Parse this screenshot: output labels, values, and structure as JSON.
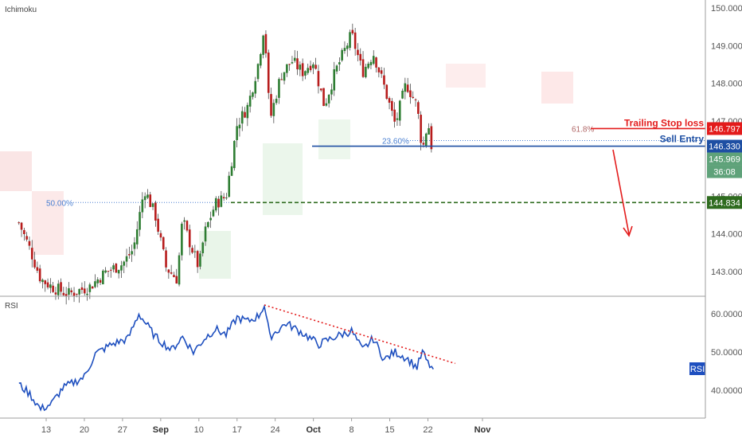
{
  "chart_data": [
    {
      "type": "candlestick",
      "indicator_label": "Ichimoku",
      "y_ticks": [
        "150.000",
        "149.000",
        "148.000",
        "147.000",
        "145.000",
        "144.000",
        "143.000"
      ],
      "ylim": [
        142.7,
        150.2
      ],
      "x_ticks": [
        "13",
        "20",
        "27",
        "Sep",
        "10",
        "17",
        "24",
        "Oct",
        "8",
        "15",
        "22",
        "Nov"
      ],
      "price_path": [
        {
          "x": "Aug 8",
          "y": 144.3
        },
        {
          "x": "Aug 10",
          "y": 143.6
        },
        {
          "x": "Aug 12",
          "y": 142.8
        },
        {
          "x": "Aug 14",
          "y": 142.6
        },
        {
          "x": "Aug 17",
          "y": 142.4
        },
        {
          "x": "Aug 21",
          "y": 142.6
        },
        {
          "x": "Aug 24",
          "y": 143.0
        },
        {
          "x": "Aug 27",
          "y": 143.2
        },
        {
          "x": "Aug 29",
          "y": 143.6
        },
        {
          "x": "Aug 31",
          "y": 145.2
        },
        {
          "x": "Sep 2",
          "y": 144.5
        },
        {
          "x": "Sep 4",
          "y": 143.1
        },
        {
          "x": "Sep 6",
          "y": 142.8
        },
        {
          "x": "Sep 7",
          "y": 144.4
        },
        {
          "x": "Sep 8",
          "y": 143.9
        },
        {
          "x": "Sep 10",
          "y": 143.1
        },
        {
          "x": "Sep 11",
          "y": 144.0
        },
        {
          "x": "Sep 13",
          "y": 144.8
        },
        {
          "x": "Sep 15",
          "y": 145.0
        },
        {
          "x": "Sep 17",
          "y": 146.9
        },
        {
          "x": "Sep 19",
          "y": 147.4
        },
        {
          "x": "Sep 21",
          "y": 148.6
        },
        {
          "x": "Sep 22",
          "y": 149.6
        },
        {
          "x": "Sep 23",
          "y": 147.0
        },
        {
          "x": "Sep 25",
          "y": 148.2
        },
        {
          "x": "Sep 27",
          "y": 148.6
        },
        {
          "x": "Sep 29",
          "y": 148.3
        },
        {
          "x": "Oct 1",
          "y": 148.6
        },
        {
          "x": "Oct 3",
          "y": 147.4
        },
        {
          "x": "Oct 5",
          "y": 148.3
        },
        {
          "x": "Oct 8",
          "y": 149.3
        },
        {
          "x": "Oct 10",
          "y": 148.3
        },
        {
          "x": "Oct 12",
          "y": 148.8
        },
        {
          "x": "Oct 14",
          "y": 147.9
        },
        {
          "x": "Oct 16",
          "y": 146.9
        },
        {
          "x": "Oct 18",
          "y": 148.0
        },
        {
          "x": "Oct 20",
          "y": 147.4
        },
        {
          "x": "Oct 21",
          "y": 146.2
        },
        {
          "x": "Oct 22",
          "y": 147.0
        },
        {
          "x": "Oct 23",
          "y": 145.97
        }
      ],
      "fib_levels": [
        {
          "label": "50.00%",
          "value": 144.834
        },
        {
          "label": "23.60%",
          "value": 146.33
        },
        {
          "label": "61.8%",
          "value": 146.797
        }
      ],
      "annotations": [
        {
          "label": "Trailing Stop loss",
          "value": "146.797",
          "color": "#e31b1b"
        },
        {
          "label": "Sell Entry",
          "value": "146.330",
          "color": "#1e4fa3"
        },
        {
          "label": "",
          "value": "144.834",
          "color": "#2e6b1e"
        }
      ],
      "last_price": "145.969",
      "countdown": "36:08",
      "colors": {
        "up": "#2e7d32",
        "down": "#b71c1c",
        "stop": "#e31b1b",
        "entry": "#1e4fa3",
        "target": "#2e6b1e",
        "last": "#5fa27a"
      }
    },
    {
      "type": "line",
      "indicator_label": "RSI",
      "legend_badge": "RSI",
      "y_ticks": [
        "60.0000",
        "50.0000",
        "40.0000"
      ],
      "ylim": [
        33,
        64
      ],
      "series": [
        {
          "color": "#1e4fbf",
          "points": [
            {
              "x": "Aug 8",
              "y": 41.5
            },
            {
              "x": "Aug 10",
              "y": 39.0
            },
            {
              "x": "Aug 12",
              "y": 35.0
            },
            {
              "x": "Aug 14",
              "y": 36.5
            },
            {
              "x": "Aug 16",
              "y": 40.5
            },
            {
              "x": "Aug 18",
              "y": 42.0
            },
            {
              "x": "Aug 20",
              "y": 43.5
            },
            {
              "x": "Aug 22",
              "y": 49.5
            },
            {
              "x": "Aug 25",
              "y": 52.0
            },
            {
              "x": "Aug 28",
              "y": 53.5
            },
            {
              "x": "Aug 30",
              "y": 60.0
            },
            {
              "x": "Sep 2",
              "y": 54.0
            },
            {
              "x": "Sep 5",
              "y": 50.5
            },
            {
              "x": "Sep 7",
              "y": 54.0
            },
            {
              "x": "Sep 9",
              "y": 50.0
            },
            {
              "x": "Sep 11",
              "y": 53.5
            },
            {
              "x": "Sep 13",
              "y": 56.0
            },
            {
              "x": "Sep 15",
              "y": 54.5
            },
            {
              "x": "Sep 17",
              "y": 59.0
            },
            {
              "x": "Sep 19",
              "y": 58.0
            },
            {
              "x": "Sep 21",
              "y": 59.5
            },
            {
              "x": "Sep 22",
              "y": 62.3
            },
            {
              "x": "Sep 23",
              "y": 54.0
            },
            {
              "x": "Sep 26",
              "y": 57.5
            },
            {
              "x": "Sep 29",
              "y": 55.0
            },
            {
              "x": "Oct 2",
              "y": 52.0
            },
            {
              "x": "Oct 5",
              "y": 54.0
            },
            {
              "x": "Oct 8",
              "y": 55.5
            },
            {
              "x": "Oct 10",
              "y": 50.5
            },
            {
              "x": "Oct 12",
              "y": 53.5
            },
            {
              "x": "Oct 14",
              "y": 48.0
            },
            {
              "x": "Oct 16",
              "y": 50.0
            },
            {
              "x": "Oct 18",
              "y": 48.5
            },
            {
              "x": "Oct 20",
              "y": 46.0
            },
            {
              "x": "Oct 21",
              "y": 50.0
            },
            {
              "x": "Oct 22",
              "y": 47.0
            },
            {
              "x": "Oct 23",
              "y": 45.5
            }
          ]
        }
      ],
      "trendline": [
        {
          "x": "Sep 22",
          "y": 62.3
        },
        {
          "x": "Oct 27",
          "y": 47.0
        }
      ],
      "x_ticks": [
        "13",
        "20",
        "27",
        "Sep",
        "10",
        "17",
        "24",
        "Oct",
        "8",
        "15",
        "22",
        "Nov"
      ]
    }
  ]
}
